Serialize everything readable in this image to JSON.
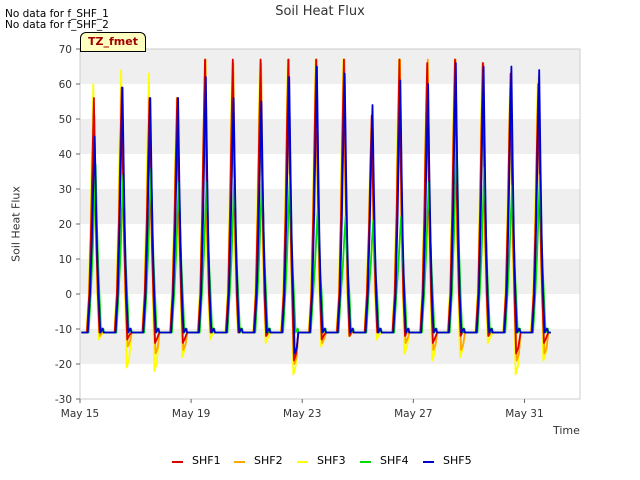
{
  "notes": [
    "No data for f_SHF_1",
    "No data for f_SHF_2"
  ],
  "tz_label": "TZ_fmet",
  "chart_data": {
    "type": "line",
    "title": "Soil Heat Flux",
    "xlabel": "Time",
    "ylabel": "Soil Heat Flux",
    "xlim": [
      "2023-05-15",
      "2023-06-02"
    ],
    "ylim": [
      -30,
      70
    ],
    "yticks": [
      -30,
      -20,
      -10,
      0,
      10,
      20,
      30,
      40,
      50,
      60,
      70
    ],
    "xticks": [
      "2023-05-15",
      "2023-05-19",
      "2023-05-23",
      "2023-05-27",
      "2023-05-31"
    ],
    "xtick_labels": [
      "May 15",
      "May 19",
      "May 23",
      "May 27",
      "May 31"
    ],
    "grid": "horizontal bands",
    "legend_position": "bottom",
    "start": "2023-05-15",
    "x_days": [
      0.5,
      1.5,
      2.5,
      3.5,
      4.5,
      5.5,
      6.5,
      7.5,
      8.5,
      9.5,
      10.5,
      11.5,
      12.5,
      13.5,
      14.5,
      15.5,
      16.5
    ],
    "series": [
      {
        "name": "SHF1",
        "color": "#dd0000",
        "peaks": [
          56,
          59,
          56,
          56,
          67,
          67,
          67,
          67,
          67,
          67,
          51,
          67,
          66,
          67,
          66,
          63,
          60
        ],
        "troughs": [
          -11,
          -13,
          -14,
          -14,
          -11,
          -11,
          -12,
          -19,
          -13,
          -12,
          -11,
          -12,
          -14,
          -12,
          -12,
          -17,
          -14
        ]
      },
      {
        "name": "SHF2",
        "color": "#ffa500",
        "peaks": [
          51,
          59,
          56,
          56,
          67,
          66,
          66,
          67,
          67,
          67,
          48,
          67,
          67,
          67,
          66,
          62,
          60
        ],
        "troughs": [
          -12,
          -15,
          -17,
          -16,
          -11,
          -11,
          -12,
          -20,
          -14,
          -12,
          -11,
          -14,
          -16,
          -16,
          -12,
          -19,
          -17
        ]
      },
      {
        "name": "SHF3",
        "color": "#ffff00",
        "peaks": [
          60,
          64,
          63,
          56,
          59,
          66,
          67,
          67,
          67,
          67,
          47,
          67,
          64,
          67,
          65,
          59,
          62
        ],
        "troughs": [
          -13,
          -21,
          -22,
          -18,
          -13,
          -11,
          -14,
          -23,
          -15,
          -12,
          -13,
          -17,
          -19,
          -18,
          -14,
          -23,
          -19
        ]
      },
      {
        "name": "SHF4",
        "color": "#00dd00",
        "peaks": [
          37,
          34,
          36,
          32,
          32,
          33,
          34,
          34,
          24,
          22,
          21,
          22,
          32,
          45,
          36,
          31,
          34
        ],
        "troughs": [
          -11,
          -11,
          -11,
          -11,
          -11,
          -11,
          -11,
          -11,
          -11,
          -11,
          -11,
          -11,
          -11,
          -11,
          -11,
          -11,
          -11
        ]
      },
      {
        "name": "SHF5",
        "color": "#0000cc",
        "peaks": [
          45,
          59,
          56,
          56,
          62,
          56,
          55,
          62,
          65,
          63,
          54,
          61,
          60,
          66,
          65,
          65,
          64
        ],
        "troughs": [
          -11,
          -11,
          -11,
          -11,
          -11,
          -11,
          -11,
          -17,
          -11,
          -11,
          -11,
          -11,
          -11,
          -11,
          -11,
          -11,
          -11
        ]
      }
    ]
  }
}
